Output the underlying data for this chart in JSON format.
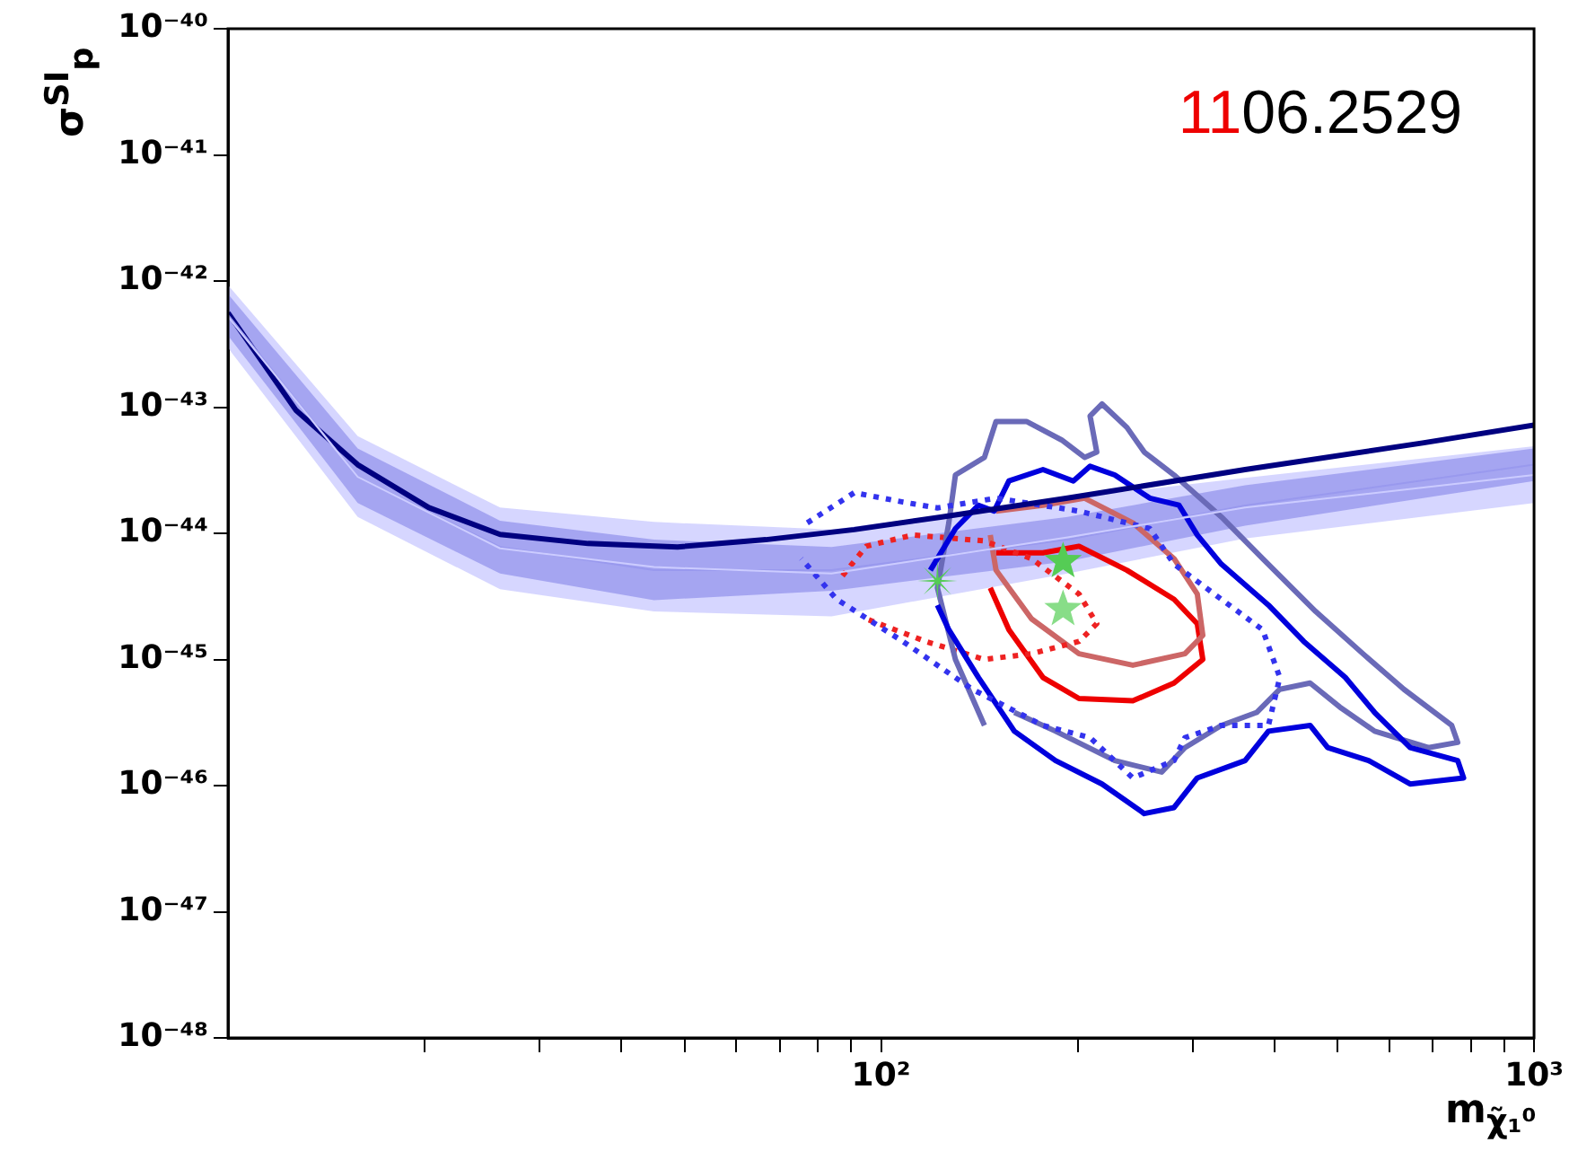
{
  "chart_data": {
    "type": "line",
    "xlabel": "m$_{χ̃₁⁰}$",
    "ylabel": "σ$^{SI}$$_{p}$",
    "annotations": [
      "1106.2529"
    ],
    "log": "xy",
    "xlim": [
      10,
      1000
    ],
    "ylim": [
      1e-48,
      1e-40
    ],
    "xticks": [
      {
        "value": 20,
        "label": null
      },
      {
        "value": 30,
        "label": null
      },
      {
        "value": 40,
        "label": null
      },
      {
        "value": 50,
        "label": null
      },
      {
        "value": 60,
        "label": null
      },
      {
        "value": 70,
        "label": null
      },
      {
        "value": 80,
        "label": null
      },
      {
        "value": 90,
        "label": null
      },
      {
        "value": 100,
        "label": "10²"
      },
      {
        "value": 200,
        "label": null
      },
      {
        "value": 300,
        "label": null
      },
      {
        "value": 400,
        "label": null
      },
      {
        "value": 500,
        "label": null
      },
      {
        "value": 600,
        "label": null
      },
      {
        "value": 700,
        "label": null
      },
      {
        "value": 800,
        "label": null
      },
      {
        "value": 900,
        "label": null
      },
      {
        "value": 1000,
        "label": "10³"
      }
    ],
    "yticks": [
      {
        "value": 1e-48,
        "label": "10⁻⁴⁸"
      },
      {
        "value": 1e-47,
        "label": "10⁻⁴⁷"
      },
      {
        "value": 1e-46,
        "label": "10⁻⁴⁶"
      },
      {
        "value": 1e-45,
        "label": "10⁻⁴⁵"
      },
      {
        "value": 1e-44,
        "label": "10⁻⁴⁴"
      },
      {
        "value": 1e-43,
        "label": "10⁻⁴³"
      },
      {
        "value": 1e-42,
        "label": "10⁻⁴²"
      },
      {
        "value": 1e-41,
        "label": "10⁻⁴¹"
      },
      {
        "value": 1e-40,
        "label": "10⁻⁴⁰"
      }
    ],
    "series": [
      {
        "color": "#ccccff",
        "marker": "none",
        "x": [
          10,
          15.8,
          26.1,
          44.9,
          84,
          193,
          361,
          1000
        ],
        "values": [
          5.2e-43,
          2.8e-44,
          7.6e-45,
          5.4e-45,
          4.8e-45,
          9.3e-45,
          1.6e-44,
          2.9e-44
        ],
        "lower": [
          2.95e-43,
          1.35e-44,
          3.6e-45,
          2.4e-45,
          2.2e-45,
          4.8e-45,
          9.1e-45,
          1.74e-44
        ],
        "upper": [
          9.3e-43,
          5.9e-44,
          1.6e-44,
          1.23e-44,
          1.07e-44,
          1.9e-44,
          2.75e-44,
          4.9e-44
        ]
      },
      {
        "color": "#9999ee",
        "marker": "none",
        "x": [
          10,
          15.8,
          26.1,
          44.9,
          84,
          193,
          361,
          1000
        ],
        "values": [
          5.4e-43,
          2.8e-44,
          7.8e-45,
          5.1e-45,
          5.1e-45,
          8.9e-45,
          1.66e-44,
          3.5e-44
        ],
        "lower": [
          3.7e-43,
          1.74e-44,
          4.8e-45,
          2.95e-45,
          3.5e-45,
          6e-45,
          1.15e-44,
          2.6e-44
        ],
        "upper": [
          7.9e-43,
          4.7e-44,
          1.26e-44,
          8.9e-45,
          7.8e-45,
          1.35e-44,
          2.4e-44,
          4.7e-44
        ]
      },
      {
        "color": "#000080",
        "marker": "none",
        "line_style": "solid",
        "x": [
          10,
          12.7,
          15.8,
          20.3,
          26.1,
          35.6,
          48.8,
          66.6,
          91,
          124,
          193,
          361,
          675,
          1000
        ],
        "values": [
          5.6e-43,
          9.5e-44,
          3.5e-44,
          1.6e-44,
          9.8e-45,
          8.3e-45,
          7.8e-45,
          8.9e-45,
          1.07e-44,
          1.35e-44,
          1.9e-44,
          3.2e-44,
          5.2e-44,
          7.2e-44
        ]
      },
      {
        "color": "#3333ee",
        "marker": "none",
        "line_style": "dotted",
        "x": [
          77.1,
          91,
          108,
          122,
          150,
          201,
          258,
          281,
          332,
          384,
          408,
          392,
          332,
          292,
          281,
          243,
          209,
          177,
          138,
          108,
          85.5,
          75.5
        ],
        "values": [
          1.21e-44,
          2.1e-44,
          1.77e-44,
          1.59e-44,
          1.9e-44,
          1.5e-44,
          1.09e-44,
          5.7e-45,
          3e-45,
          1.72e-45,
          7.2e-46,
          3e-46,
          3e-46,
          2.4e-46,
          1.58e-46,
          1.15e-46,
          2.4e-46,
          3e-46,
          5.8e-46,
          1.39e-45,
          3e-45,
          6.3e-45
        ]
      },
      {
        "color": "#0000dd",
        "marker": "none",
        "line_style": "solid",
        "x": [
          119,
          130,
          141,
          149,
          157,
          177,
          197,
          209,
          228,
          258,
          286,
          305,
          332,
          392,
          444,
          514,
          570,
          646,
          764,
          780,
          646,
          558,
          483,
          454,
          392,
          361,
          305,
          281,
          253,
          218,
          185,
          160,
          141,
          127,
          122
        ],
        "values": [
          5.1e-45,
          1.09e-44,
          1.67e-44,
          1.5e-44,
          2.6e-44,
          3.2e-44,
          2.6e-44,
          3.4e-44,
          2.9e-44,
          1.9e-44,
          1.67e-44,
          9.7e-45,
          5.7e-45,
          2.7e-45,
          1.39e-45,
          7.2e-46,
          3.8e-46,
          2e-46,
          1.58e-46,
          1.15e-46,
          1.03e-46,
          1.58e-46,
          2e-46,
          3e-46,
          2.7e-46,
          1.58e-46,
          1.15e-46,
          6.7e-47,
          6e-47,
          1.03e-46,
          1.58e-46,
          2.7e-46,
          7.2e-46,
          1.72e-45,
          2.7e-45
        ]
      },
      {
        "color": "#6a6ab8",
        "marker": "none",
        "line_style": "solid",
        "x": [
          144,
          130,
          122,
          127,
          130,
          144,
          150,
          167,
          189,
          205,
          214,
          209,
          218,
          238,
          253,
          281,
          332,
          384,
          463,
          547,
          632,
          748,
          764,
          689,
          570,
          504,
          454,
          408,
          376,
          332,
          292,
          269,
          228,
          185,
          160
        ],
        "values": [
          3e-46,
          1e-45,
          3.7e-45,
          1.21e-44,
          2.9e-44,
          4e-44,
          7.7e-44,
          7.7e-44,
          5.5e-44,
          4e-44,
          4.4e-44,
          8.5e-44,
          1.06e-43,
          6.9e-44,
          4.4e-44,
          2.9e-44,
          1.35e-44,
          6.3e-45,
          2.4e-45,
          1.11e-45,
          5.8e-46,
          3e-46,
          2.2e-46,
          2e-46,
          2.7e-46,
          4.2e-46,
          6.5e-46,
          5.8e-46,
          3.8e-46,
          3e-46,
          2e-46,
          1.28e-46,
          1.58e-46,
          2.7e-46,
          3.8e-46
        ]
      },
      {
        "color": "#ee2222",
        "marker": "none",
        "line_style": "dotted",
        "x": [
          87.3,
          94.9,
          112,
          144,
          170,
          201,
          214,
          201,
          170,
          144,
          117,
          94.9
        ],
        "values": [
          4.6e-45,
          7.9e-45,
          9.7e-45,
          8.7e-45,
          6.3e-45,
          3.3e-45,
          1.92e-45,
          1.39e-45,
          1.11e-45,
          1e-45,
          1.39e-45,
          2.1e-45
        ]
      },
      {
        "color": "#cc6666",
        "marker": "none",
        "line_style": "solid",
        "x": [
          150,
          177,
          205,
          243,
          281,
          305,
          311,
          292,
          243,
          201,
          170,
          150,
          147
        ],
        "values": [
          1.5e-44,
          1.67e-44,
          1.9e-44,
          1.21e-44,
          6.3e-45,
          3.3e-45,
          1.55e-45,
          1.11e-45,
          9e-46,
          1.11e-45,
          2.1e-45,
          5.1e-45,
          9.7e-45
        ]
      },
      {
        "color": "#ee0000",
        "marker": "none",
        "line_style": "solid",
        "x": [
          150,
          177,
          201,
          238,
          281,
          305,
          311,
          281,
          243,
          201,
          177,
          157,
          147
        ],
        "values": [
          7e-45,
          7e-45,
          7.9e-45,
          5.1e-45,
          3e-45,
          1.92e-45,
          1e-45,
          6.5e-46,
          4.7e-46,
          4.9e-46,
          7.2e-46,
          1.72e-45,
          3.7e-45
        ]
      },
      {
        "type": "scatter",
        "color": "#55cc55",
        "marker": "cross",
        "x": [
          122
        ],
        "values": [
          4.2e-45
        ]
      },
      {
        "type": "scatter",
        "color": "#55cc55",
        "marker": "star",
        "x": [
          190
        ],
        "values": [
          6e-45
        ]
      },
      {
        "type": "scatter",
        "color": "#88dd88",
        "marker": "star",
        "x": [
          190
        ],
        "values": [
          2.5e-45
        ]
      }
    ]
  }
}
